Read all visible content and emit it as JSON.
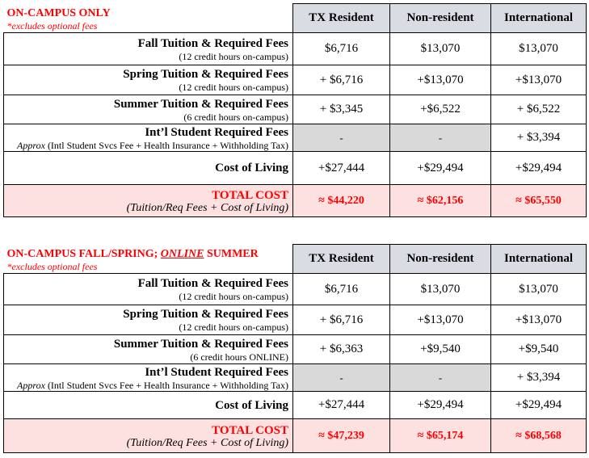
{
  "columns": [
    "TX Resident",
    "Non-resident",
    "International"
  ],
  "sections": [
    {
      "title": "ON-CAMPUS ONLY",
      "note": "*excludes optional fees",
      "rows": [
        {
          "label": "Fall Tuition & Required Fees",
          "sub": "(12 credit hours on-campus)",
          "values": [
            "$6,716",
            "$13,070",
            "$13,070"
          ]
        },
        {
          "label": "Spring Tuition & Required Fees",
          "sub": "(12 credit hours on-campus)",
          "values": [
            "+ $6,716",
            "+$13,070",
            "+$13,070"
          ]
        },
        {
          "label": "Summer Tuition & Required Fees",
          "sub": "(6 credit hours on-campus)",
          "values": [
            "+ $3,345",
            "+$6,522",
            "+ $6,522"
          ]
        },
        {
          "label": "Int’l Student Required Fees",
          "sub_prefix": "Approx",
          "sub": " (Intl Student Svcs Fee + Health Insurance + Withholding Tax)",
          "values": [
            "-",
            "-",
            "+ $3,394"
          ]
        },
        {
          "label": "Cost of Living",
          "values": [
            "+$27,444",
            "+$29,494",
            "+$29,494"
          ]
        },
        {
          "label": "TOTAL COST",
          "sub": "(Tuition/Req Fees + Cost of Living)",
          "values": [
            "≈ $44,220",
            "≈  $62,156",
            "≈ $65,550"
          ]
        }
      ]
    },
    {
      "title_prefix": "ON-CAMPUS FALL/SPRING; ",
      "title_emph": "ONLINE",
      "title_suffix": " SUMMER",
      "note": "*excludes optional fees",
      "rows": [
        {
          "label": "Fall Tuition & Required Fees",
          "sub": "(12 credit hours on-campus)",
          "values": [
            "$6,716",
            "$13,070",
            "$13,070"
          ]
        },
        {
          "label": "Spring Tuition & Required Fees",
          "sub": "(12 credit hours on-campus)",
          "values": [
            "+ $6,716",
            "+$13,070",
            "+$13,070"
          ]
        },
        {
          "label": "Summer Tuition & Required Fees",
          "sub": "(6 credit hours ONLINE)",
          "values": [
            "+ $6,363",
            "+$9,540",
            "+$9,540"
          ]
        },
        {
          "label": "Int’l Student Required Fees",
          "sub_prefix": "Approx",
          "sub": " (Intl Student Svcs Fee + Health Insurance + Withholding Tax)",
          "values": [
            "-",
            "-",
            "+ $3,394"
          ]
        },
        {
          "label": "Cost of Living",
          "values": [
            "+$27,444",
            "+$29,494",
            "+$29,494"
          ]
        },
        {
          "label": "TOTAL COST",
          "sub": "(Tuition/Req Fees + Cost of Living)",
          "values": [
            "≈ $47,239",
            "≈  $65,174",
            "≈ $68,568"
          ]
        }
      ]
    }
  ]
}
